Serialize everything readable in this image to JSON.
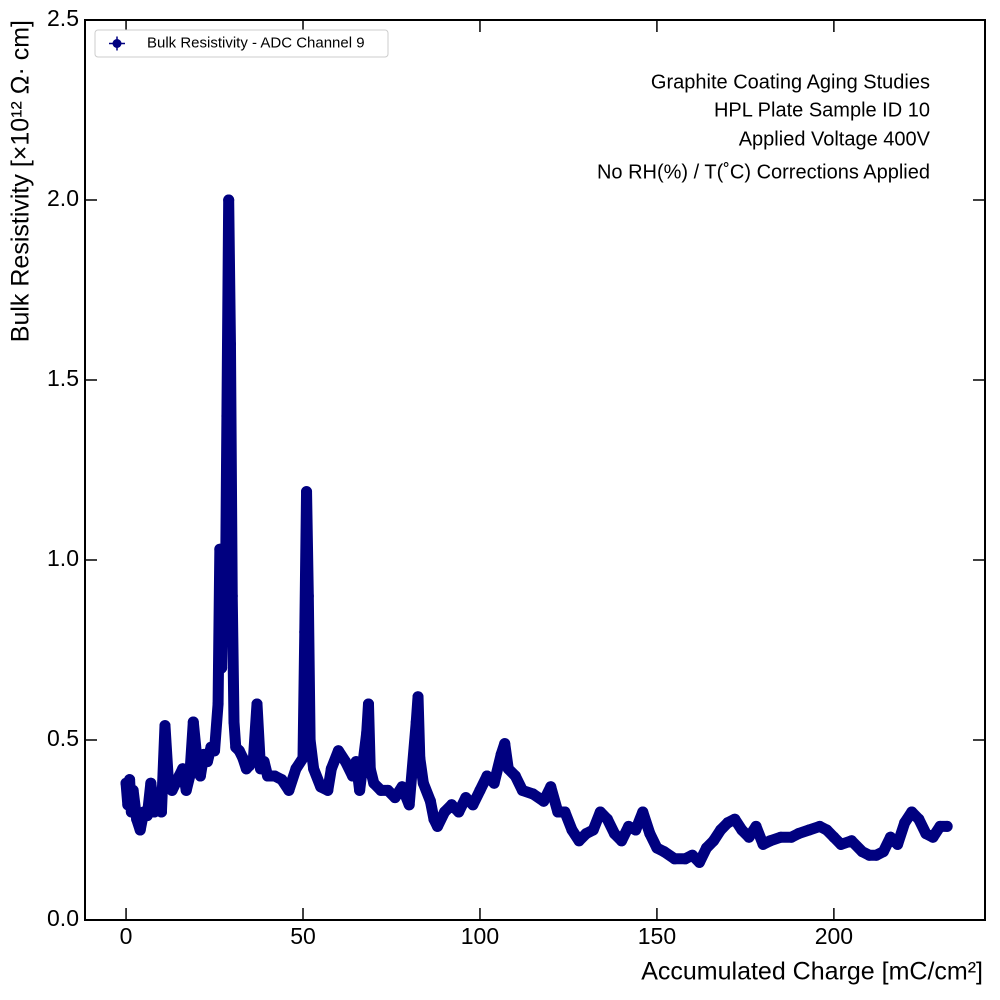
{
  "chart_data": {
    "type": "scatter",
    "xlabel": "Accumulated Charge [mC/cm²]",
    "ylabel": "Bulk Resistivity [×10¹² Ω· cm]",
    "annotations": [
      "Graphite Coating Aging Studies",
      "HPL Plate Sample ID 10",
      "Applied Voltage 400V",
      "No RH(%) / T(˚C) Corrections Applied"
    ],
    "legend": "upper left",
    "xlim": [
      -11.6,
      242.7
    ],
    "ylim": [
      0,
      2.5
    ],
    "xticks": [
      0,
      50,
      100,
      150,
      200
    ],
    "yticks": [
      {
        "value": 0,
        "label": "0.0"
      },
      {
        "value": 0.5,
        "label": "0.5"
      },
      {
        "value": 1.0,
        "label": "1.0"
      },
      {
        "value": 1.5,
        "label": "1.5"
      },
      {
        "value": 2.0,
        "label": "2.0"
      },
      {
        "value": 2.5,
        "label": "2.5"
      }
    ],
    "series": [
      {
        "name": "Bulk Resistivity - ADC Channel 9",
        "color": "#000080",
        "x": [
          0,
          0.5,
          1,
          1.5,
          2,
          3,
          4,
          5,
          6,
          7,
          8,
          9,
          10,
          11,
          12,
          13,
          14,
          15,
          16,
          17,
          18,
          19,
          20,
          21,
          22,
          23,
          24,
          25,
          26,
          26.5,
          27,
          27.5,
          28,
          28.5,
          29,
          29.5,
          30,
          30.5,
          31,
          32,
          33,
          34,
          35,
          36,
          37,
          38,
          39,
          40,
          42,
          44,
          46,
          48,
          50,
          50.5,
          51,
          51.5,
          52,
          53,
          55,
          57,
          58,
          60,
          62,
          64,
          65,
          66,
          68,
          68.5,
          69,
          70,
          72,
          74,
          76,
          78,
          80,
          82,
          82.5,
          83,
          84,
          86,
          87,
          88,
          90,
          92,
          94,
          96,
          98,
          100,
          102,
          104,
          106,
          107,
          108,
          110,
          112,
          115,
          118,
          120,
          122,
          124,
          126,
          128,
          130,
          132,
          134,
          136,
          138,
          140,
          142,
          144,
          146,
          148,
          150,
          152,
          155,
          158,
          160,
          162,
          164,
          166,
          168,
          170,
          172,
          174,
          176,
          178,
          180,
          182,
          185,
          188,
          190,
          193,
          196,
          198,
          200,
          202,
          205,
          208,
          210,
          212,
          214,
          216,
          218,
          220,
          222,
          224,
          226,
          228,
          230,
          232
        ],
        "values": [
          0.38,
          0.32,
          0.39,
          0.3,
          0.36,
          0.28,
          0.25,
          0.3,
          0.29,
          0.38,
          0.3,
          0.32,
          0.3,
          0.54,
          0.38,
          0.36,
          0.38,
          0.4,
          0.42,
          0.36,
          0.4,
          0.55,
          0.45,
          0.4,
          0.46,
          0.44,
          0.48,
          0.47,
          0.6,
          1.03,
          0.7,
          1.02,
          0.8,
          1.4,
          2.0,
          1.6,
          0.9,
          0.55,
          0.48,
          0.47,
          0.45,
          0.42,
          0.43,
          0.45,
          0.6,
          0.42,
          0.44,
          0.4,
          0.4,
          0.39,
          0.36,
          0.42,
          0.45,
          0.8,
          1.19,
          0.9,
          0.5,
          0.42,
          0.37,
          0.36,
          0.42,
          0.47,
          0.44,
          0.4,
          0.44,
          0.36,
          0.52,
          0.6,
          0.42,
          0.38,
          0.36,
          0.36,
          0.34,
          0.37,
          0.32,
          0.55,
          0.62,
          0.45,
          0.38,
          0.33,
          0.28,
          0.26,
          0.3,
          0.32,
          0.3,
          0.34,
          0.32,
          0.36,
          0.4,
          0.38,
          0.46,
          0.49,
          0.42,
          0.4,
          0.36,
          0.35,
          0.33,
          0.37,
          0.3,
          0.3,
          0.25,
          0.22,
          0.24,
          0.25,
          0.3,
          0.28,
          0.24,
          0.22,
          0.26,
          0.25,
          0.3,
          0.24,
          0.2,
          0.19,
          0.17,
          0.17,
          0.18,
          0.16,
          0.2,
          0.22,
          0.25,
          0.27,
          0.28,
          0.25,
          0.23,
          0.26,
          0.21,
          0.22,
          0.23,
          0.23,
          0.24,
          0.25,
          0.26,
          0.25,
          0.23,
          0.21,
          0.22,
          0.19,
          0.18,
          0.18,
          0.19,
          0.23,
          0.21,
          0.27,
          0.3,
          0.28,
          0.24,
          0.23,
          0.26,
          0.26
        ]
      }
    ]
  }
}
